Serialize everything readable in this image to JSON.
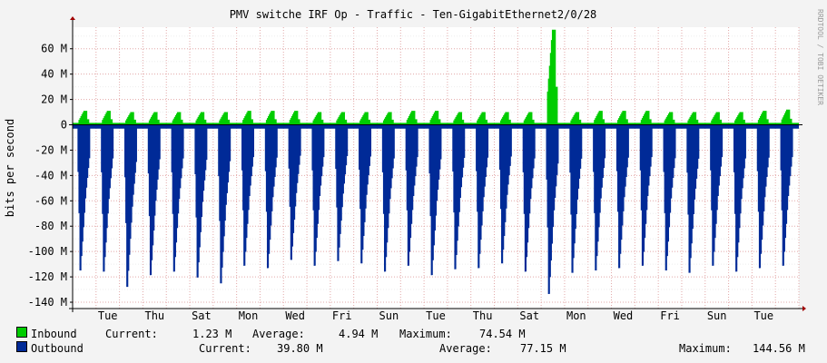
{
  "chart_data": {
    "type": "area",
    "title": "PMV switche IRF Op - Traffic - Ten-GigabitEthernet2/0/28",
    "ylabel": "bits per second",
    "watermark": "RRDTOOL / TOBI OETIKER",
    "ylim": [
      -145,
      77
    ],
    "y_ticks": [
      {
        "value": 60,
        "label": "60 M"
      },
      {
        "value": 40,
        "label": "40 M"
      },
      {
        "value": 20,
        "label": "20 M"
      },
      {
        "value": 0,
        "label": "0"
      },
      {
        "value": -20,
        "label": "-20 M"
      },
      {
        "value": -40,
        "label": "-40 M"
      },
      {
        "value": -60,
        "label": "-60 M"
      },
      {
        "value": -80,
        "label": "-80 M"
      },
      {
        "value": -100,
        "label": "-100 M"
      },
      {
        "value": -120,
        "label": "-120 M"
      },
      {
        "value": -140,
        "label": "-140 M"
      }
    ],
    "x_ticks": [
      {
        "day": 1.5,
        "label": "Tue"
      },
      {
        "day": 3.5,
        "label": "Thu"
      },
      {
        "day": 5.5,
        "label": "Sat"
      },
      {
        "day": 7.5,
        "label": "Mon"
      },
      {
        "day": 9.5,
        "label": "Wed"
      },
      {
        "day": 11.5,
        "label": "Fri"
      },
      {
        "day": 13.5,
        "label": "Sun"
      },
      {
        "day": 15.5,
        "label": "Tue"
      },
      {
        "day": 17.5,
        "label": "Thu"
      },
      {
        "day": 19.5,
        "label": "Sat"
      },
      {
        "day": 21.5,
        "label": "Mon"
      },
      {
        "day": 23.5,
        "label": "Wed"
      },
      {
        "day": 25.5,
        "label": "Fri"
      },
      {
        "day": 27.5,
        "label": "Sun"
      },
      {
        "day": 29.5,
        "label": "Tue"
      }
    ],
    "x_range_days": [
      0,
      31
    ],
    "series": [
      {
        "name": "Inbound",
        "color": "#00cc00",
        "direction": "up",
        "daily_peak_M": [
          11,
          11,
          10,
          10,
          10,
          10,
          10,
          11,
          11,
          11,
          10,
          10,
          10,
          10,
          11,
          11,
          10,
          10,
          10,
          10,
          75,
          10,
          11,
          11,
          11,
          10,
          10,
          10,
          10,
          11,
          12
        ]
      },
      {
        "name": "Outbound",
        "color": "#002a97",
        "direction": "down",
        "daily_peak_M": [
          124,
          125,
          138,
          128,
          125,
          130,
          135,
          120,
          122,
          115,
          120,
          116,
          118,
          125,
          120,
          128,
          123,
          122,
          118,
          125,
          144,
          126,
          124,
          122,
          120,
          124,
          126,
          120,
          125,
          122,
          120
        ]
      }
    ],
    "legend": [
      {
        "name": "Inbound",
        "color": "#00cc00",
        "current_label": "Current:",
        "current": "1.23 M",
        "average_label": "Average:",
        "average": "4.94 M",
        "maximum_label": "Maximum:",
        "maximum": "74.54 M"
      },
      {
        "name": "Outbound",
        "color": "#002a97",
        "current_label": "Current:",
        "current": "39.80 M",
        "average_label": "Average:",
        "average": "77.15 M",
        "maximum_label": "Maximum:",
        "maximum": "144.56 M"
      }
    ]
  }
}
